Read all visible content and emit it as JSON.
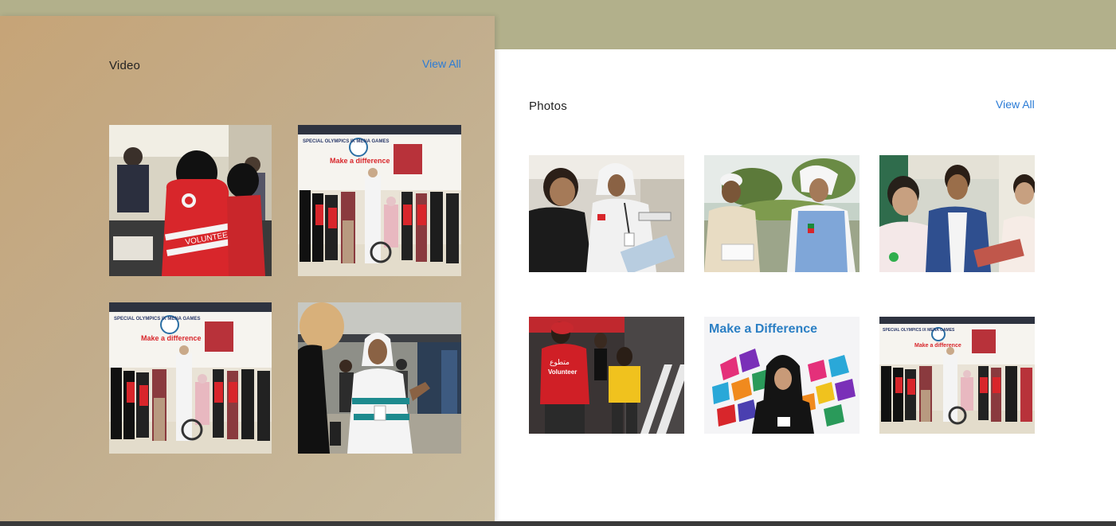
{
  "video": {
    "title": "Video",
    "view_all": "View All",
    "items": [
      {
        "name": "volunteer-registration-video",
        "scene": "volunteer"
      },
      {
        "name": "make-a-difference-group-video",
        "scene": "group"
      },
      {
        "name": "make-a-difference-group-video-2",
        "scene": "group"
      },
      {
        "name": "airport-welcome-video",
        "scene": "airport"
      }
    ]
  },
  "photos": {
    "title": "Photos",
    "view_all": "View All",
    "items": [
      {
        "name": "volunteer-handing-brochure-photo",
        "scene": "brochure"
      },
      {
        "name": "handing-package-photo",
        "scene": "package"
      },
      {
        "name": "students-activity-photo",
        "scene": "students"
      },
      {
        "name": "volunteer-crowd-photo",
        "scene": "crowd"
      },
      {
        "name": "make-a-difference-woman-photo",
        "scene": "woman"
      },
      {
        "name": "make-a-difference-group-photo",
        "scene": "group"
      }
    ]
  },
  "banner_text": {
    "games_logo": "SPECIAL OLYMPICS IX MENA GAMES",
    "make_difference_small": "Make a difference",
    "make_difference_large": "Make a Difference",
    "volunteer_vest": "VOLUNTEER",
    "volunteer_arabic": "متطوع",
    "volunteer_en": "Volunteer"
  }
}
